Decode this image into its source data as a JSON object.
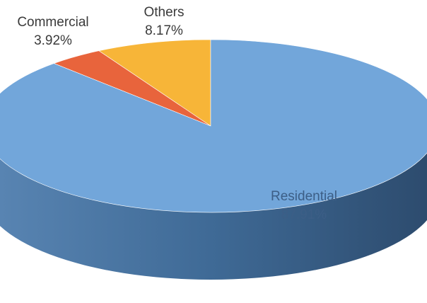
{
  "chart_data": {
    "type": "pie",
    "categories": [
      "Others",
      "Commercial",
      "Residential"
    ],
    "values": [
      8.17,
      3.92,
      87.91
    ],
    "value_labels": [
      "8.17%",
      "3.92%",
      "87.91%"
    ],
    "colors": [
      "#f7b538",
      "#e8643c",
      "#72a6da"
    ]
  }
}
